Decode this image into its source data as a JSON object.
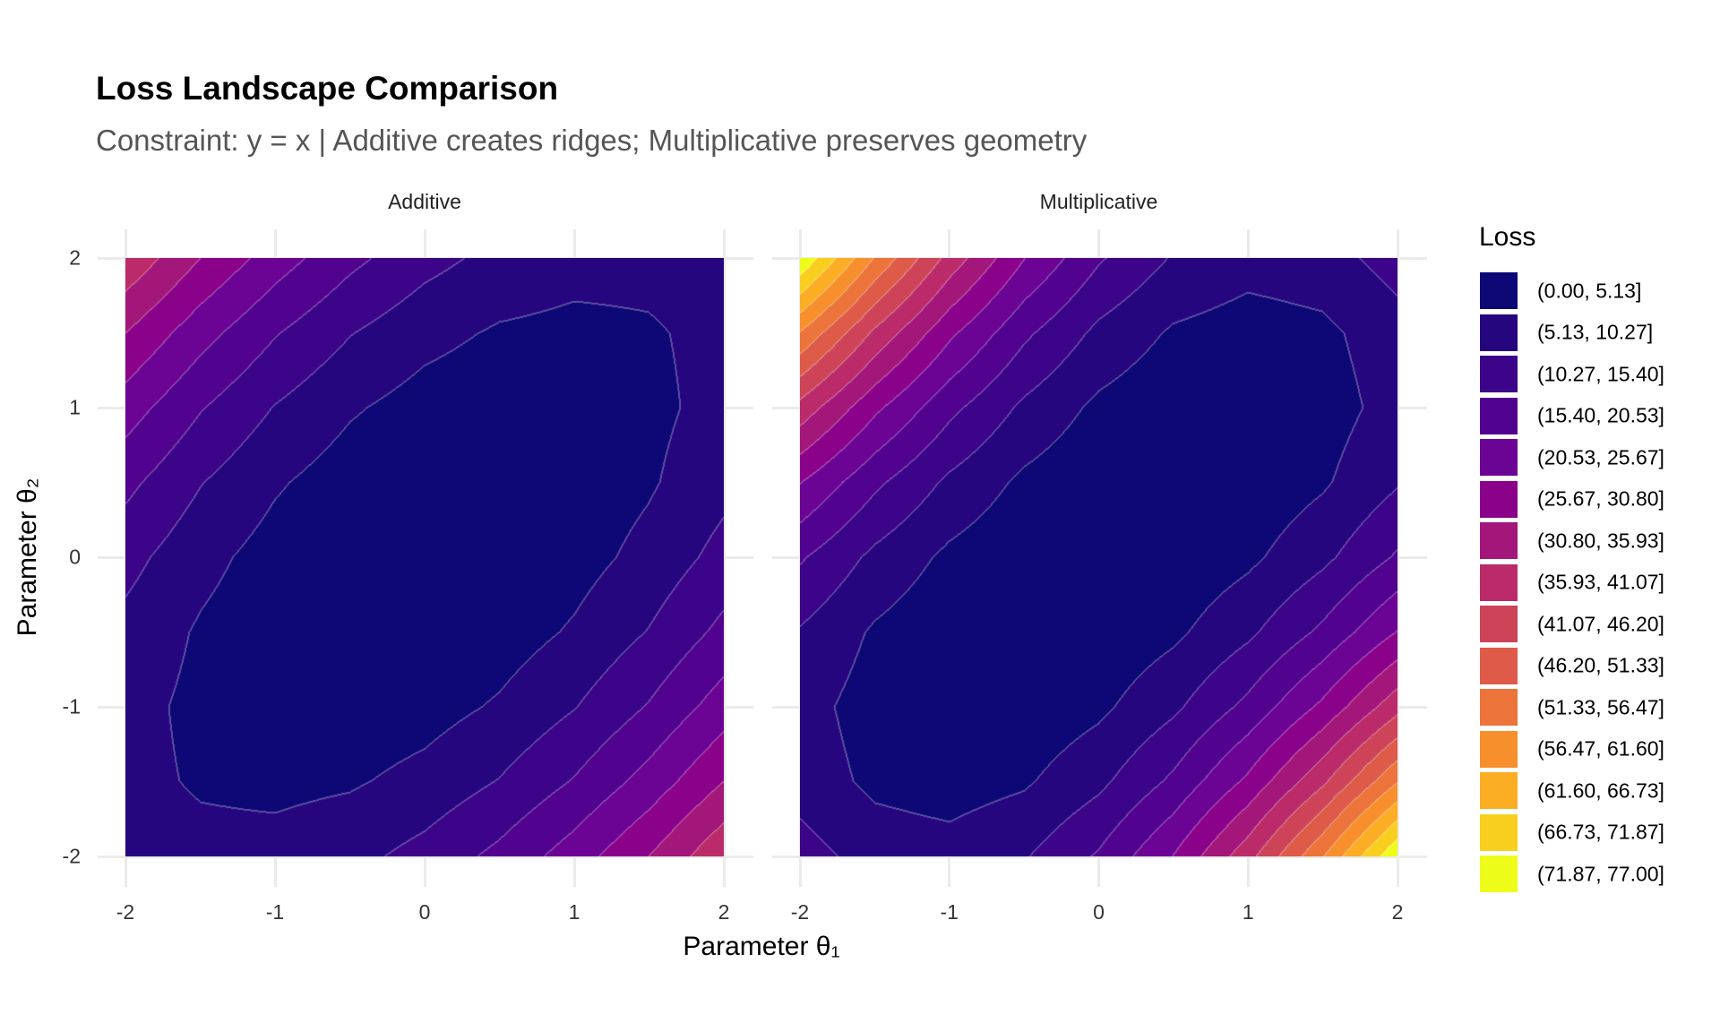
{
  "chart_data": {
    "type": "heatmap",
    "subtype": "filled-contour",
    "title": "Loss Landscape Comparison",
    "subtitle": "Constraint: y = x | Additive creates ridges; Multiplicative preserves geometry",
    "xlabel": "Parameter θ₁",
    "ylabel": "Parameter θ₂",
    "xlim": [
      -2,
      2
    ],
    "ylim": [
      -2,
      2
    ],
    "x_ticks": [
      "-2",
      "-1",
      "0",
      "1",
      "2"
    ],
    "y_ticks": [
      "2",
      "1",
      "0",
      "-1",
      "-2"
    ],
    "grid": true,
    "legend": {
      "title": "Loss",
      "placement": "right",
      "breaks": [
        0,
        5.13,
        10.27,
        15.4,
        20.53,
        25.67,
        30.8,
        35.93,
        41.07,
        46.2,
        51.33,
        56.47,
        61.6,
        66.73,
        71.87,
        77.0
      ],
      "labels": [
        "(0.00, 5.13]",
        "(5.13, 10.27]",
        "(10.27, 15.40]",
        "(15.40, 20.53]",
        "(20.53, 25.67]",
        "(25.67, 30.80]",
        "(30.80, 35.93]",
        "(35.93, 41.07]",
        "(41.07, 46.20]",
        "(46.20, 51.33]",
        "(51.33, 56.47]",
        "(56.47, 61.60]",
        "(61.60, 66.73]",
        "(66.73, 71.87]",
        "(71.87, 77.00]"
      ],
      "colors": [
        "#0d0876",
        "#26067f",
        "#3b0489",
        "#51038f",
        "#6b0394",
        "#8b028a",
        "#a3177a",
        "#bb2b69",
        "#cd4357",
        "#dd5b48",
        "#ec7339",
        "#f68f2c",
        "#fbad24",
        "#f9cf1f",
        "#eefc1a"
      ]
    },
    "grid_x": [
      -2,
      -1.5,
      -1,
      -0.5,
      0,
      0.5,
      1,
      1.5,
      2
    ],
    "grid_y": [
      2,
      1.5,
      1,
      0.5,
      0,
      -0.5,
      -1,
      -1.5,
      -2
    ],
    "panels": [
      {
        "name": "Additive",
        "z": [
          [
            40,
            30.75,
            23,
            16.75,
            12,
            8.75,
            7,
            6.75,
            8
          ],
          [
            30.75,
            22.5,
            15.75,
            10.5,
            6.75,
            4.5,
            3.75,
            4.5,
            6.75
          ],
          [
            23,
            15.75,
            10,
            5.75,
            3,
            1.75,
            2,
            3.75,
            7
          ],
          [
            16.75,
            10.5,
            5.75,
            2.5,
            0.75,
            0.5,
            1.75,
            4.5,
            8.75
          ],
          [
            12,
            6.75,
            3,
            0.75,
            0,
            0.75,
            3,
            6.75,
            12
          ],
          [
            8.75,
            4.5,
            1.75,
            0.5,
            0.75,
            2.5,
            5.75,
            10.5,
            16.75
          ],
          [
            7,
            3.75,
            2,
            1.75,
            3,
            5.75,
            10,
            15.75,
            23
          ],
          [
            6.75,
            4.5,
            3.75,
            4.5,
            6.75,
            10.5,
            15.75,
            22.5,
            30.75
          ],
          [
            8,
            6.75,
            7,
            8.75,
            12,
            16.75,
            23,
            30.75,
            40
          ]
        ]
      },
      {
        "name": "Multiplicative",
        "z": [
          [
            76.48,
            56.02,
            39.12,
            25.78,
            16,
            9.78,
            7.12,
            8.02,
            12.48
          ],
          [
            56.02,
            39.95,
            26.76,
            16.44,
            9,
            4.44,
            2.76,
            3.95,
            8.02
          ],
          [
            39.12,
            26.76,
            16.78,
            9.2,
            4,
            1.2,
            0.78,
            2.76,
            7.12
          ],
          [
            25.78,
            16.44,
            9.2,
            4.05,
            1,
            0.05,
            1.2,
            4.44,
            9.78
          ],
          [
            16,
            9,
            4,
            1,
            0,
            1,
            4,
            9,
            16
          ],
          [
            9.78,
            4.44,
            1.2,
            0.05,
            1,
            4.05,
            9.2,
            16.44,
            25.78
          ],
          [
            7.12,
            2.76,
            0.78,
            1.2,
            4,
            9.2,
            16.78,
            26.76,
            39.12
          ],
          [
            8.02,
            3.95,
            2.76,
            4.44,
            9,
            16.44,
            26.76,
            39.95,
            56.02
          ],
          [
            12.48,
            8.02,
            7.12,
            9.78,
            16,
            25.78,
            39.12,
            56.02,
            76.48
          ]
        ]
      }
    ]
  }
}
